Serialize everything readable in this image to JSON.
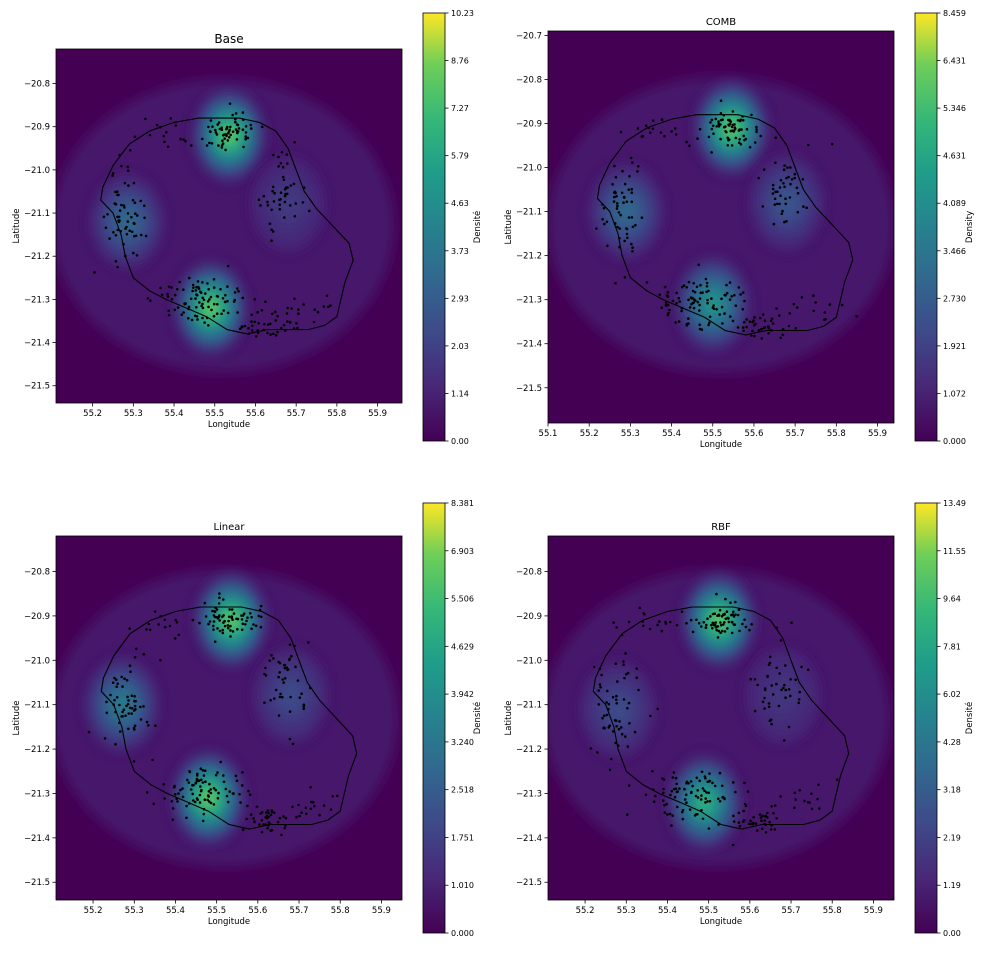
{
  "figure": {
    "title": "",
    "colormap": "viridis",
    "outline_color": "#000000",
    "point_color": "#000000"
  },
  "chart_data": [
    {
      "type": "heatmap",
      "title": "Base",
      "xlabel": "Longitude",
      "ylabel": "Latitude",
      "colorbar_label": "Densité",
      "xlim": [
        55.11,
        55.96
      ],
      "ylim": [
        -21.54,
        -20.72
      ],
      "xticks": [
        "55.2",
        "55.3",
        "55.4",
        "55.5",
        "55.6",
        "55.7",
        "55.8",
        "55.9"
      ],
      "yticks": [
        "−20.8",
        "−20.9",
        "−21.0",
        "−21.1",
        "−21.2",
        "−21.3",
        "−21.4",
        "−21.5"
      ],
      "colorbar_ticks": [
        "0.00",
        "1.14",
        "2.03",
        "2.93",
        "3.73",
        "4.63",
        "5.79",
        "7.27",
        "8.76",
        "10.23"
      ],
      "hotspots": [
        {
          "lon": 55.535,
          "lat": -20.92,
          "weight": 1.0
        },
        {
          "lon": 55.49,
          "lat": -21.32,
          "weight": 1.0
        },
        {
          "lon": 55.285,
          "lat": -21.12,
          "weight": 0.45
        },
        {
          "lon": 55.68,
          "lat": -21.08,
          "weight": 0.22
        }
      ]
    },
    {
      "type": "heatmap",
      "title": "COMB",
      "xlabel": "Longitude",
      "ylabel": "Latitude",
      "colorbar_label": "Density",
      "xlim": [
        55.1,
        55.94
      ],
      "ylim": [
        -21.58,
        -20.69
      ],
      "xticks": [
        "55.1",
        "55.2",
        "55.3",
        "55.4",
        "55.5",
        "55.6",
        "55.7",
        "55.8",
        "55.9"
      ],
      "yticks": [
        "−20.7",
        "−20.8",
        "−20.9",
        "−21.0",
        "−21.1",
        "−21.2",
        "−21.3",
        "−21.4",
        "−21.5"
      ],
      "colorbar_ticks": [
        "0.000",
        "1.072",
        "1.921",
        "2.730",
        "3.466",
        "4.089",
        "4.631",
        "5.346",
        "6.431",
        "8.459"
      ],
      "hotspots": [
        {
          "lon": 55.545,
          "lat": -20.91,
          "weight": 1.0
        },
        {
          "lon": 55.5,
          "lat": -21.31,
          "weight": 0.7
        },
        {
          "lon": 55.29,
          "lat": -21.1,
          "weight": 0.45
        },
        {
          "lon": 55.68,
          "lat": -21.08,
          "weight": 0.35
        }
      ]
    },
    {
      "type": "heatmap",
      "title": "Linear",
      "xlabel": "Longitude",
      "ylabel": "Latitude",
      "colorbar_label": "Densité",
      "xlim": [
        55.11,
        55.95
      ],
      "ylim": [
        -21.54,
        -20.72
      ],
      "xticks": [
        "55.2",
        "55.3",
        "55.4",
        "55.5",
        "55.6",
        "55.7",
        "55.8",
        "55.9"
      ],
      "yticks": [
        "−20.8",
        "−20.9",
        "−21.0",
        "−21.1",
        "−21.2",
        "−21.3",
        "−21.4",
        "−21.5"
      ],
      "colorbar_ticks": [
        "0.000",
        "1.010",
        "1.751",
        "2.518",
        "3.240",
        "3.942",
        "4.629",
        "5.506",
        "6.903",
        "8.381"
      ],
      "hotspots": [
        {
          "lon": 55.535,
          "lat": -20.91,
          "weight": 1.0
        },
        {
          "lon": 55.48,
          "lat": -21.31,
          "weight": 1.0
        },
        {
          "lon": 55.27,
          "lat": -21.1,
          "weight": 0.55
        },
        {
          "lon": 55.68,
          "lat": -21.08,
          "weight": 0.3
        }
      ]
    },
    {
      "type": "heatmap",
      "title": "RBF",
      "xlabel": "Longitude",
      "ylabel": "Latitude",
      "colorbar_label": "Densité",
      "xlim": [
        55.11,
        55.95
      ],
      "ylim": [
        -21.54,
        -20.72
      ],
      "xticks": [
        "55.2",
        "55.3",
        "55.4",
        "55.5",
        "55.6",
        "55.7",
        "55.8",
        "55.9"
      ],
      "yticks": [
        "−20.8",
        "−20.9",
        "−21.0",
        "−21.1",
        "−21.2",
        "−21.3",
        "−21.4",
        "−21.5"
      ],
      "colorbar_ticks": [
        "0.00",
        "1.19",
        "2.19",
        "3.18",
        "4.28",
        "6.02",
        "7.81",
        "9.64",
        "11.55",
        "13.49"
      ],
      "hotspots": [
        {
          "lon": 55.525,
          "lat": -20.91,
          "weight": 1.0
        },
        {
          "lon": 55.49,
          "lat": -21.32,
          "weight": 0.85
        },
        {
          "lon": 55.28,
          "lat": -21.11,
          "weight": 0.3
        },
        {
          "lon": 55.68,
          "lat": -21.08,
          "weight": 0.2
        }
      ]
    }
  ],
  "island_outline": [
    [
      55.225,
      -21.04
    ],
    [
      55.25,
      -20.99
    ],
    [
      55.29,
      -20.94
    ],
    [
      55.34,
      -20.91
    ],
    [
      55.4,
      -20.89
    ],
    [
      55.46,
      -20.88
    ],
    [
      55.5,
      -20.88
    ],
    [
      55.56,
      -20.88
    ],
    [
      55.61,
      -20.89
    ],
    [
      55.65,
      -20.91
    ],
    [
      55.68,
      -20.95
    ],
    [
      55.7,
      -21.0
    ],
    [
      55.72,
      -21.05
    ],
    [
      55.75,
      -21.09
    ],
    [
      55.79,
      -21.13
    ],
    [
      55.83,
      -21.17
    ],
    [
      55.84,
      -21.21
    ],
    [
      55.82,
      -21.26
    ],
    [
      55.81,
      -21.3
    ],
    [
      55.8,
      -21.34
    ],
    [
      55.77,
      -21.36
    ],
    [
      55.73,
      -21.37
    ],
    [
      55.68,
      -21.37
    ],
    [
      55.63,
      -21.37
    ],
    [
      55.58,
      -21.38
    ],
    [
      55.53,
      -21.37
    ],
    [
      55.48,
      -21.34
    ],
    [
      55.43,
      -21.32
    ],
    [
      55.38,
      -21.3
    ],
    [
      55.34,
      -21.28
    ],
    [
      55.3,
      -21.25
    ],
    [
      55.28,
      -21.2
    ],
    [
      55.27,
      -21.15
    ],
    [
      55.25,
      -21.1
    ],
    [
      55.22,
      -21.07
    ]
  ],
  "observation_clusters": [
    {
      "lon": 55.535,
      "lat": -20.91,
      "spread_lon": 0.035,
      "spread_lat": 0.02,
      "count": 70
    },
    {
      "lon": 55.47,
      "lat": -21.3,
      "spread_lon": 0.06,
      "spread_lat": 0.03,
      "count": 90
    },
    {
      "lon": 55.28,
      "lat": -21.1,
      "spread_lon": 0.03,
      "spread_lat": 0.06,
      "count": 60
    },
    {
      "lon": 55.62,
      "lat": -21.36,
      "spread_lon": 0.04,
      "spread_lat": 0.015,
      "count": 40
    },
    {
      "lon": 55.67,
      "lat": -21.05,
      "spread_lon": 0.03,
      "spread_lat": 0.05,
      "count": 45
    },
    {
      "lon": 55.38,
      "lat": -20.92,
      "spread_lon": 0.04,
      "spread_lat": 0.015,
      "count": 15
    },
    {
      "lon": 55.74,
      "lat": -21.32,
      "spread_lon": 0.04,
      "spread_lat": 0.02,
      "count": 15
    }
  ]
}
